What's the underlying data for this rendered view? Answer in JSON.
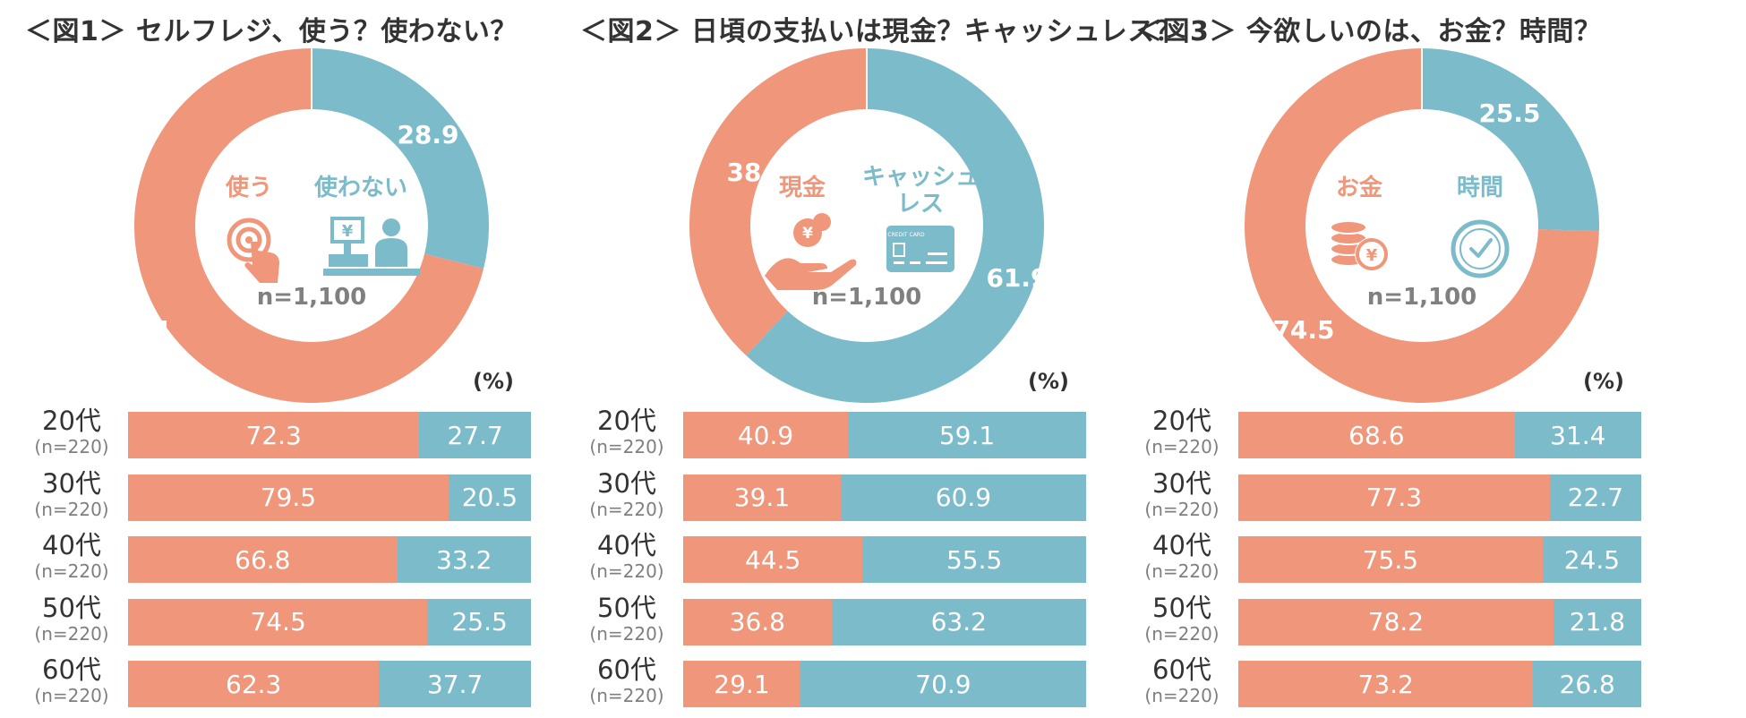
{
  "colors": {
    "coral": "#EF967B",
    "teal": "#7CBBCA",
    "gray": "#808080"
  },
  "panels": [
    {
      "title": "＜図1＞ セルフレジ、使う？使わない？",
      "unit": "(%)",
      "donut": {
        "label_a": "使う",
        "label_b": "使わない",
        "value_a": "71.1",
        "value_b": "28.9",
        "n_label": "n=1,100",
        "icon_a": "touch-hand-icon",
        "icon_b": "cashier-register-icon"
      },
      "chart_data": {
        "type": "bar",
        "orientation": "horizontal-stacked-100",
        "categories": [
          "20代",
          "30代",
          "40代",
          "50代",
          "60代"
        ],
        "category_n": [
          "(n=220)",
          "(n=220)",
          "(n=220)",
          "(n=220)",
          "(n=220)"
        ],
        "series": [
          {
            "name": "使う",
            "values": [
              72.3,
              79.5,
              66.8,
              74.5,
              62.3
            ]
          },
          {
            "name": "使わない",
            "values": [
              27.7,
              20.5,
              33.2,
              25.5,
              37.7
            ]
          }
        ],
        "donut": {
          "type": "pie",
          "labels": [
            "使う",
            "使わない"
          ],
          "values": [
            71.1,
            28.9
          ]
        }
      }
    },
    {
      "title": "＜図2＞ 日頃の支払いは現金？キャッシュレス？",
      "unit": "(%)",
      "donut": {
        "label_a": "現金",
        "label_b": "キャッシュ\nレス",
        "value_a": "38.1",
        "value_b": "61.9",
        "n_label": "n=1,100",
        "icon_a": "hand-yen-coin-icon",
        "icon_b": "credit-card-icon"
      },
      "chart_data": {
        "type": "bar",
        "orientation": "horizontal-stacked-100",
        "categories": [
          "20代",
          "30代",
          "40代",
          "50代",
          "60代"
        ],
        "category_n": [
          "(n=220)",
          "(n=220)",
          "(n=220)",
          "(n=220)",
          "(n=220)"
        ],
        "series": [
          {
            "name": "現金",
            "values": [
              40.9,
              39.1,
              44.5,
              36.8,
              29.1
            ]
          },
          {
            "name": "キャッシュレス",
            "values": [
              59.1,
              60.9,
              55.5,
              63.2,
              70.9
            ]
          }
        ],
        "donut": {
          "type": "pie",
          "labels": [
            "現金",
            "キャッシュレス"
          ],
          "values": [
            38.1,
            61.9
          ]
        }
      }
    },
    {
      "title": "＜図3＞ 今欲しいのは、お金？時間？",
      "unit": "(%)",
      "donut": {
        "label_a": "お金",
        "label_b": "時間",
        "value_a": "74.5",
        "value_b": "25.5",
        "n_label": "n=1,100",
        "icon_a": "coin-stack-yen-icon",
        "icon_b": "clock-icon"
      },
      "chart_data": {
        "type": "bar",
        "orientation": "horizontal-stacked-100",
        "categories": [
          "20代",
          "30代",
          "40代",
          "50代",
          "60代"
        ],
        "category_n": [
          "(n=220)",
          "(n=220)",
          "(n=220)",
          "(n=220)",
          "(n=220)"
        ],
        "series": [
          {
            "name": "お金",
            "values": [
              68.6,
              77.3,
              75.5,
              78.2,
              73.2
            ]
          },
          {
            "name": "時間",
            "values": [
              31.4,
              22.7,
              24.5,
              21.8,
              26.8
            ]
          }
        ],
        "donut": {
          "type": "pie",
          "labels": [
            "お金",
            "時間"
          ],
          "values": [
            74.5,
            25.5
          ]
        }
      }
    }
  ]
}
